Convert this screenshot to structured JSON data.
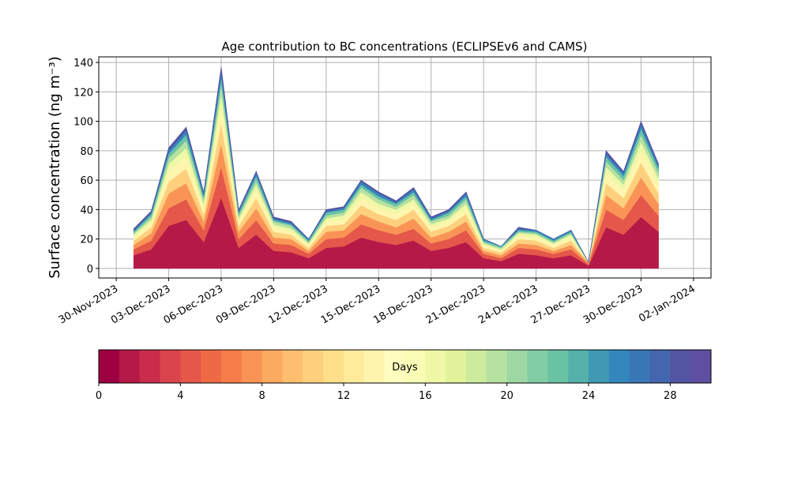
{
  "chart_data": {
    "type": "stacked_area",
    "title": "Age contribution to BC concentrations (ECLIPSEv6 and CAMS)",
    "y_label": "Surface concentration (ng m⁻³)",
    "x": [
      "2023-12-01",
      "2023-12-02",
      "2023-12-03",
      "2023-12-04",
      "2023-12-05",
      "2023-12-06",
      "2023-12-07",
      "2023-12-08",
      "2023-12-09",
      "2023-12-10",
      "2023-12-11",
      "2023-12-12",
      "2023-12-13",
      "2023-12-14",
      "2023-12-15",
      "2023-12-16",
      "2023-12-17",
      "2023-12-18",
      "2023-12-19",
      "2023-12-20",
      "2023-12-21",
      "2023-12-22",
      "2023-12-23",
      "2023-12-24",
      "2023-12-25",
      "2023-12-26",
      "2023-12-27",
      "2023-12-28",
      "2023-12-29",
      "2023-12-30",
      "2023-12-31"
    ],
    "series": [
      {
        "color": "#b41947",
        "values": [
          9,
          13,
          29,
          33,
          18,
          48,
          14,
          23,
          12,
          11,
          7,
          14,
          15,
          21,
          18,
          16,
          19,
          12,
          14,
          18,
          7,
          5,
          10,
          9,
          7,
          9,
          2,
          28,
          23,
          35,
          25
        ]
      },
      {
        "color": "#e4574a",
        "values": [
          4,
          6,
          12,
          14,
          8,
          21,
          6,
          10,
          5,
          5,
          3,
          6,
          6,
          9,
          8,
          7,
          8,
          5,
          6,
          8,
          3,
          2,
          4,
          4,
          3,
          4,
          1,
          12,
          10,
          15,
          11
        ]
      },
      {
        "color": "#f99456",
        "values": [
          3,
          5,
          10,
          11,
          6,
          16,
          5,
          8,
          4,
          4,
          2,
          5,
          5,
          7,
          6,
          5,
          7,
          4,
          5,
          6,
          2,
          2,
          3,
          3,
          2,
          3,
          1,
          10,
          8,
          12,
          8
        ]
      },
      {
        "color": "#fed07e",
        "values": [
          3,
          4,
          8,
          10,
          5,
          14,
          4,
          7,
          4,
          3,
          2,
          4,
          4,
          6,
          5,
          5,
          6,
          4,
          4,
          5,
          2,
          2,
          3,
          3,
          2,
          3,
          0,
          8,
          7,
          10,
          7
        ]
      },
      {
        "color": "#fff5ae",
        "values": [
          2,
          3,
          7,
          8,
          4,
          11,
          3,
          5,
          3,
          2,
          2,
          3,
          3,
          5,
          4,
          4,
          4,
          3,
          3,
          4,
          2,
          1,
          2,
          2,
          2,
          2,
          0,
          6,
          5,
          8,
          6
        ]
      },
      {
        "color": "#eff8a6",
        "values": [
          2,
          2,
          5,
          6,
          3,
          8,
          2,
          4,
          2,
          2,
          1,
          2,
          3,
          4,
          3,
          3,
          3,
          2,
          2,
          3,
          1,
          1,
          2,
          2,
          1,
          2,
          0,
          5,
          4,
          6,
          4
        ]
      },
      {
        "color": "#b5e1a1",
        "values": [
          1,
          2,
          4,
          5,
          3,
          7,
          2,
          3,
          2,
          2,
          1,
          2,
          2,
          3,
          3,
          2,
          3,
          2,
          2,
          3,
          1,
          1,
          1,
          1,
          1,
          1,
          0,
          4,
          3,
          5,
          4
        ]
      },
      {
        "color": "#6ac2a5",
        "values": [
          1,
          2,
          3,
          4,
          2,
          5,
          2,
          3,
          1,
          1,
          1,
          2,
          2,
          2,
          2,
          2,
          2,
          1,
          2,
          2,
          1,
          1,
          1,
          1,
          1,
          1,
          0,
          3,
          3,
          4,
          3
        ]
      },
      {
        "color": "#3487bc",
        "values": [
          1,
          1,
          2,
          3,
          2,
          4,
          1,
          2,
          1,
          1,
          1,
          1,
          1,
          2,
          2,
          1,
          2,
          1,
          1,
          2,
          1,
          0,
          1,
          1,
          1,
          1,
          0,
          2,
          2,
          3,
          2
        ]
      },
      {
        "color": "#5355a3",
        "values": [
          1,
          1,
          2,
          2,
          1,
          3,
          1,
          1,
          1,
          1,
          0,
          1,
          1,
          1,
          1,
          1,
          1,
          1,
          1,
          1,
          0,
          0,
          1,
          0,
          0,
          0,
          0,
          2,
          1,
          2,
          1
        ]
      }
    ],
    "xlim": [
      "2023-11-29",
      "2024-01-03"
    ],
    "xticks": [
      {
        "value": "2023-11-30",
        "label": "30-Nov-2023"
      },
      {
        "value": "2023-12-03",
        "label": "03-Dec-2023"
      },
      {
        "value": "2023-12-06",
        "label": "06-Dec-2023"
      },
      {
        "value": "2023-12-09",
        "label": "09-Dec-2023"
      },
      {
        "value": "2023-12-12",
        "label": "12-Dec-2023"
      },
      {
        "value": "2023-12-15",
        "label": "15-Dec-2023"
      },
      {
        "value": "2023-12-18",
        "label": "18-Dec-2023"
      },
      {
        "value": "2023-12-21",
        "label": "21-Dec-2023"
      },
      {
        "value": "2023-12-24",
        "label": "24-Dec-2023"
      },
      {
        "value": "2023-12-27",
        "label": "27-Dec-2023"
      },
      {
        "value": "2023-12-30",
        "label": "30-Dec-2023"
      },
      {
        "value": "2024-01-02",
        "label": "02-Jan-2024"
      }
    ],
    "ylim": [
      -6.5,
      143.8
    ],
    "yticks": [
      0,
      20,
      40,
      60,
      80,
      100,
      120,
      140
    ],
    "grid": true,
    "colorbar": {
      "label": "Days",
      "lim": [
        0,
        30
      ],
      "ticks": [
        0,
        4,
        8,
        12,
        16,
        20,
        24,
        28
      ],
      "colors": [
        "#9e0142",
        "#b41947",
        "#c92d4b",
        "#d9444d",
        "#e4574a",
        "#ee6a45",
        "#f67c4a",
        "#f99456",
        "#fcaa60",
        "#fdbf6f",
        "#fed07e",
        "#fee08b",
        "#feeb9c",
        "#fff5ae",
        "#fffdbe",
        "#f8fcb4",
        "#eff8a6",
        "#e0f29a",
        "#cdeb9d",
        "#b5e1a1",
        "#9dd7a4",
        "#82cda5",
        "#6ac2a5",
        "#55b0aa",
        "#4099b2",
        "#3487bc",
        "#3a77b6",
        "#4466ae",
        "#5355a3",
        "#5e4fa2"
      ]
    }
  }
}
